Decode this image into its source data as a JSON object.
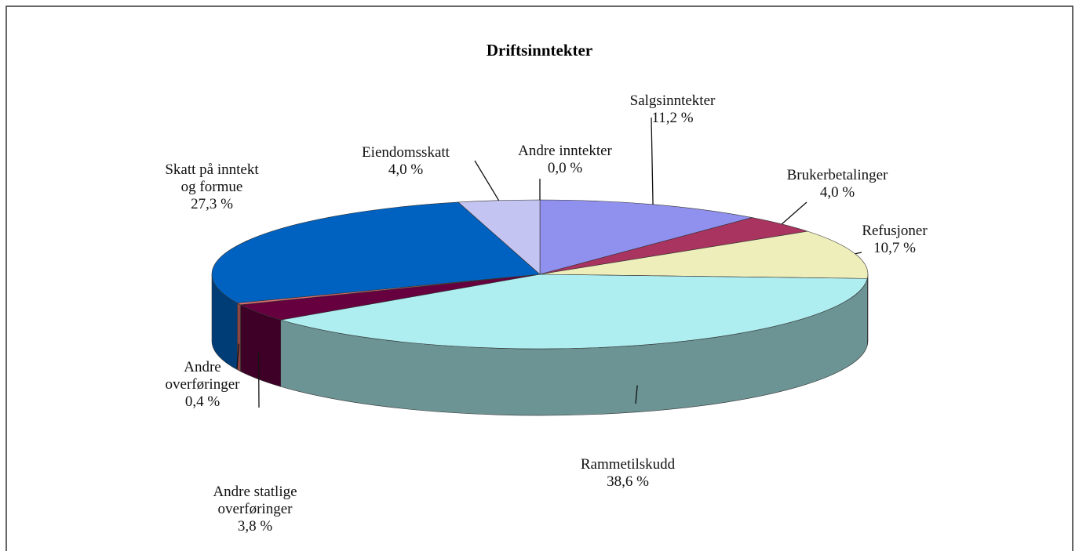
{
  "chart_data": {
    "type": "pie",
    "title": "Driftsinntekter",
    "categories": [
      "Andre inntekter",
      "Salgsinntekter",
      "Brukerbetalinger",
      "Refusjoner",
      "Rammetilskudd",
      "Andre statlige\noverføringer",
      "Andre\noverføringer",
      "Skatt på inntekt\nog formue",
      "Eiendomsskatt"
    ],
    "values": [
      0.0,
      11.2,
      4.0,
      10.7,
      38.6,
      3.8,
      0.4,
      27.3,
      4.0
    ],
    "value_labels": [
      "0,0 %",
      "11,2 %",
      "4,0 %",
      "10,7 %",
      "38,6 %",
      "3,8 %",
      "0,4 %",
      "27,3 %",
      "4,0 %"
    ],
    "colors": [
      "#ffff99",
      "#9090ee",
      "#a8345f",
      "#eeeebb",
      "#aeeef0",
      "#66003f",
      "#e07070",
      "#0062c0",
      "#c4c4f2"
    ]
  }
}
